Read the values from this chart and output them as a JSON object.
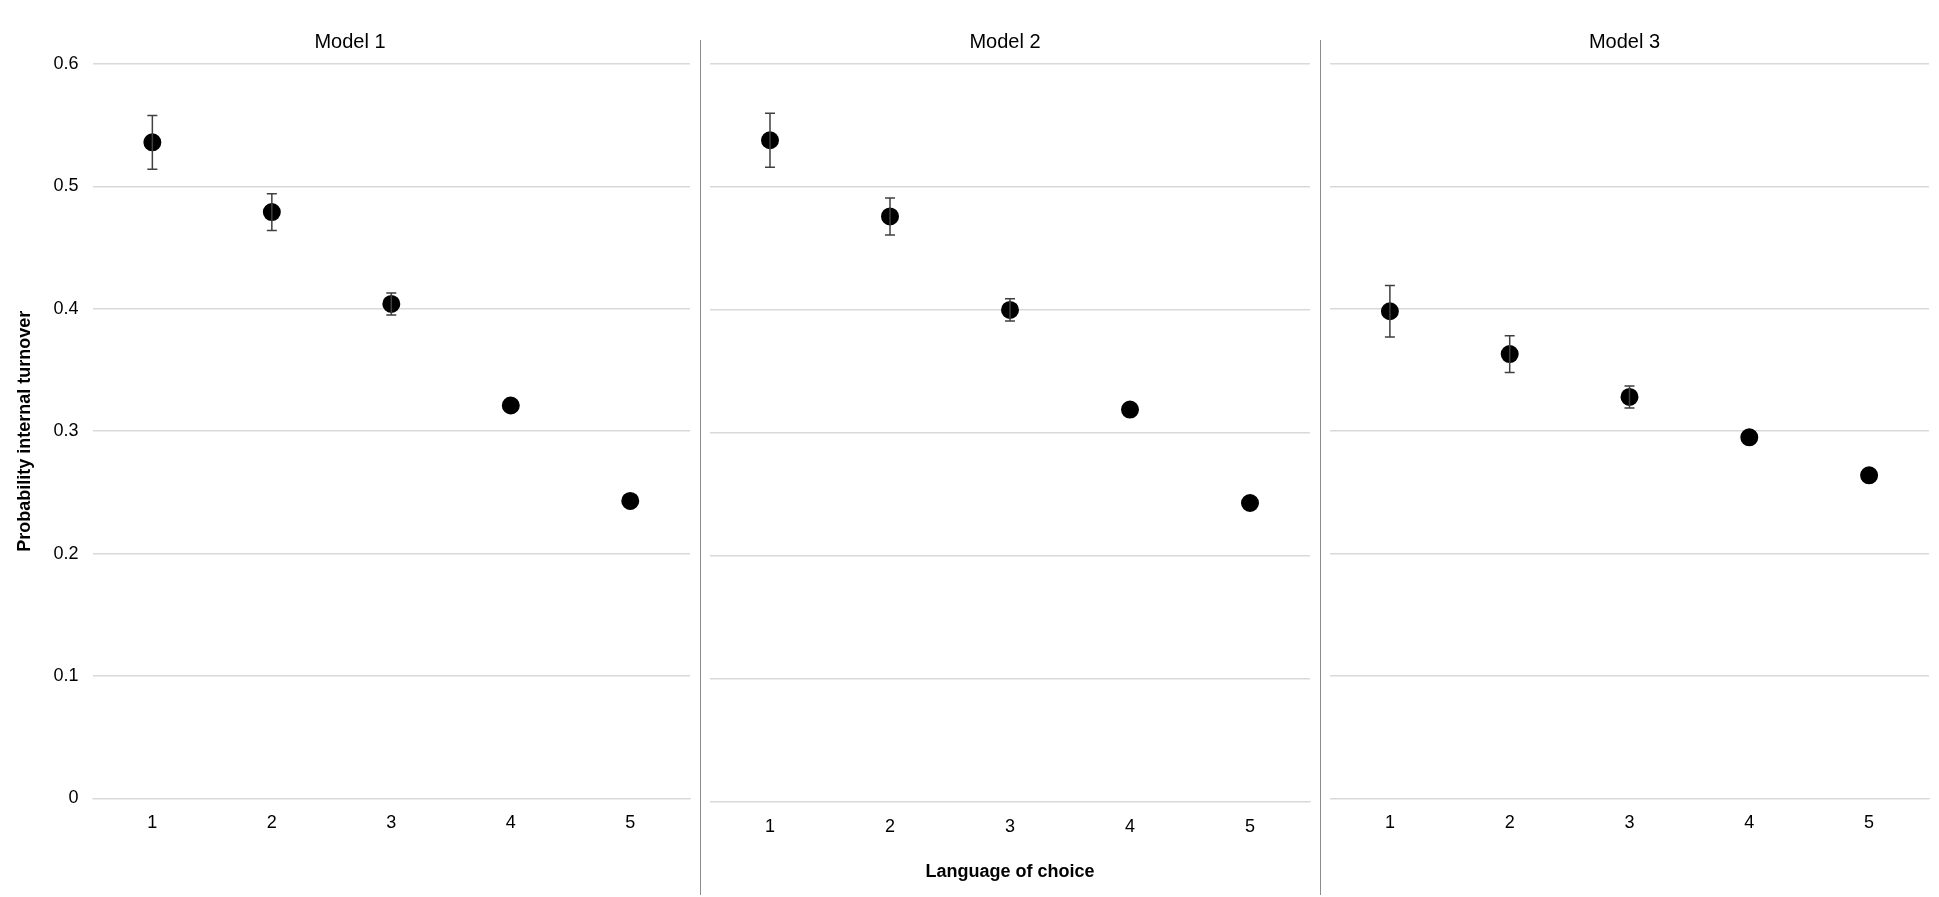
{
  "chart_data": [
    {
      "type": "scatter",
      "title": "Model 1",
      "ylabel": "Probability internal turnover",
      "categories": [
        "1",
        "2",
        "3",
        "4",
        "5"
      ],
      "values": [
        0.536,
        0.479,
        0.404,
        0.321,
        0.243
      ],
      "errors": [
        0.022,
        0.015,
        0.009,
        null,
        null
      ],
      "color": "#000000",
      "ylim": [
        0,
        0.6
      ],
      "yticks": [
        0,
        0.1,
        0.2,
        0.3,
        0.4,
        0.5,
        0.6
      ],
      "grid": "y",
      "marker": "circle"
    },
    {
      "type": "scatter",
      "title": "Model 2",
      "xlabel": "Language of choice",
      "categories": [
        "1",
        "2",
        "3",
        "4",
        "5"
      ],
      "values": [
        0.538,
        0.476,
        0.4,
        0.319,
        0.243
      ],
      "errors": [
        0.022,
        0.015,
        0.009,
        null,
        null
      ],
      "color": "#000000",
      "ylim": [
        0,
        0.6
      ],
      "yticks": [
        0,
        0.1,
        0.2,
        0.3,
        0.4,
        0.5,
        0.6
      ],
      "grid": "y",
      "marker": "circle",
      "tick_labels": "x"
    },
    {
      "type": "scatter",
      "title": "Model 3",
      "categories": [
        "1",
        "2",
        "3",
        "4",
        "5"
      ],
      "values": [
        0.398,
        0.363,
        0.328,
        0.295,
        0.264
      ],
      "errors": [
        0.021,
        0.015,
        0.009,
        null,
        null
      ],
      "color": "#000000",
      "ylim": [
        0,
        0.6
      ],
      "yticks": [
        0,
        0.1,
        0.2,
        0.3,
        0.4,
        0.5,
        0.6
      ],
      "grid": "y",
      "marker": "circle",
      "tick_labels": "x"
    }
  ]
}
